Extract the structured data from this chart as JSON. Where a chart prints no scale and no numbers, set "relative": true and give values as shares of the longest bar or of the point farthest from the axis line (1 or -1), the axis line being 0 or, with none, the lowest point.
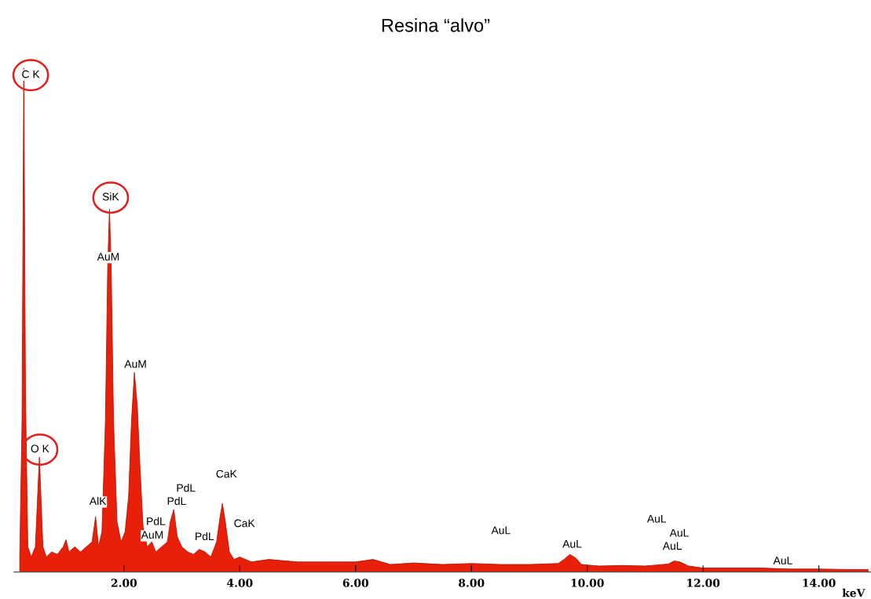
{
  "chart_data": {
    "type": "area",
    "title": "Resina “alvo”",
    "xlabel": "keV",
    "relative": true,
    "x": [
      0.2,
      0.24,
      0.27,
      0.3,
      0.34,
      0.4,
      0.47,
      0.54,
      0.6,
      0.66,
      0.75,
      0.85,
      0.95,
      1.0,
      1.05,
      1.15,
      1.25,
      1.35,
      1.45,
      1.51,
      1.56,
      1.62,
      1.68,
      1.72,
      1.75,
      1.78,
      1.82,
      1.88,
      1.95,
      2.02,
      2.08,
      2.13,
      2.18,
      2.23,
      2.28,
      2.33,
      2.4,
      2.48,
      2.55,
      2.65,
      2.75,
      2.8,
      2.86,
      2.92,
      3.0,
      3.1,
      3.2,
      3.3,
      3.4,
      3.5,
      3.6,
      3.66,
      3.7,
      3.75,
      3.82,
      3.9,
      4.0,
      4.2,
      4.5,
      5.0,
      5.5,
      6.0,
      6.3,
      6.6,
      7.0,
      7.5,
      8.0,
      8.5,
      9.0,
      9.5,
      9.6,
      9.7,
      9.8,
      9.9,
      10.2,
      10.6,
      11.0,
      11.4,
      11.5,
      11.6,
      11.75,
      12.0,
      12.5,
      13.0,
      13.5,
      14.0,
      14.5,
      14.85
    ],
    "series": [
      {
        "color": "#e8200a",
        "values": [
          0.03,
          0.3,
          1.0,
          0.35,
          0.05,
          0.03,
          0.05,
          0.228,
          0.05,
          0.03,
          0.04,
          0.035,
          0.05,
          0.064,
          0.04,
          0.05,
          0.04,
          0.05,
          0.06,
          0.11,
          0.05,
          0.08,
          0.3,
          0.61,
          0.72,
          0.6,
          0.3,
          0.1,
          0.06,
          0.08,
          0.15,
          0.3,
          0.396,
          0.33,
          0.2,
          0.09,
          0.05,
          0.06,
          0.04,
          0.05,
          0.06,
          0.1,
          0.124,
          0.07,
          0.05,
          0.04,
          0.035,
          0.045,
          0.04,
          0.03,
          0.06,
          0.11,
          0.136,
          0.1,
          0.04,
          0.025,
          0.03,
          0.02,
          0.025,
          0.02,
          0.02,
          0.02,
          0.025,
          0.015,
          0.018,
          0.015,
          0.017,
          0.015,
          0.015,
          0.017,
          0.025,
          0.035,
          0.028,
          0.015,
          0.012,
          0.013,
          0.012,
          0.016,
          0.022,
          0.02,
          0.012,
          0.008,
          0.008,
          0.008,
          0.006,
          0.006,
          0.005,
          0.005
        ]
      }
    ],
    "xlim": [
      0.1,
      14.9
    ],
    "xticks": [
      {
        "value": 2,
        "label": "2.00"
      },
      {
        "value": 4,
        "label": "4.00"
      },
      {
        "value": 6,
        "label": "6.00"
      },
      {
        "value": 8,
        "label": "8.00"
      },
      {
        "value": 10,
        "label": "10.00"
      },
      {
        "value": 12,
        "label": "12.00"
      },
      {
        "value": 14,
        "label": "14.00"
      }
    ],
    "grid": false,
    "annotations": [
      {
        "text": "C K",
        "x": 0.39,
        "y": 0.986
      },
      {
        "text": "SiK",
        "x": 1.77,
        "y": 0.743
      },
      {
        "text": "AuM",
        "x": 1.73,
        "y": 0.624
      },
      {
        "text": "AuM",
        "x": 2.2,
        "y": 0.411
      },
      {
        "text": "O K",
        "x": 0.55,
        "y": 0.243
      },
      {
        "text": "AlK",
        "x": 1.55,
        "y": 0.139
      },
      {
        "text": "PdL",
        "x": 3.07,
        "y": 0.165
      },
      {
        "text": "PdL",
        "x": 2.91,
        "y": 0.139
      },
      {
        "text": "PdL",
        "x": 2.55,
        "y": 0.099
      },
      {
        "text": "AuM",
        "x": 2.49,
        "y": 0.072
      },
      {
        "text": "PdL",
        "x": 3.39,
        "y": 0.069
      },
      {
        "text": "CaK",
        "x": 3.77,
        "y": 0.193
      },
      {
        "text": "CaK",
        "x": 4.08,
        "y": 0.095
      },
      {
        "text": "AuL",
        "x": 8.51,
        "y": 0.081
      },
      {
        "text": "AuL",
        "x": 9.74,
        "y": 0.054
      },
      {
        "text": "AuL",
        "x": 11.2,
        "y": 0.104
      },
      {
        "text": "AuL",
        "x": 11.59,
        "y": 0.076
      },
      {
        "text": "AuL",
        "x": 11.47,
        "y": 0.05
      },
      {
        "text": "AuL",
        "x": 13.38,
        "y": 0.021
      }
    ]
  }
}
